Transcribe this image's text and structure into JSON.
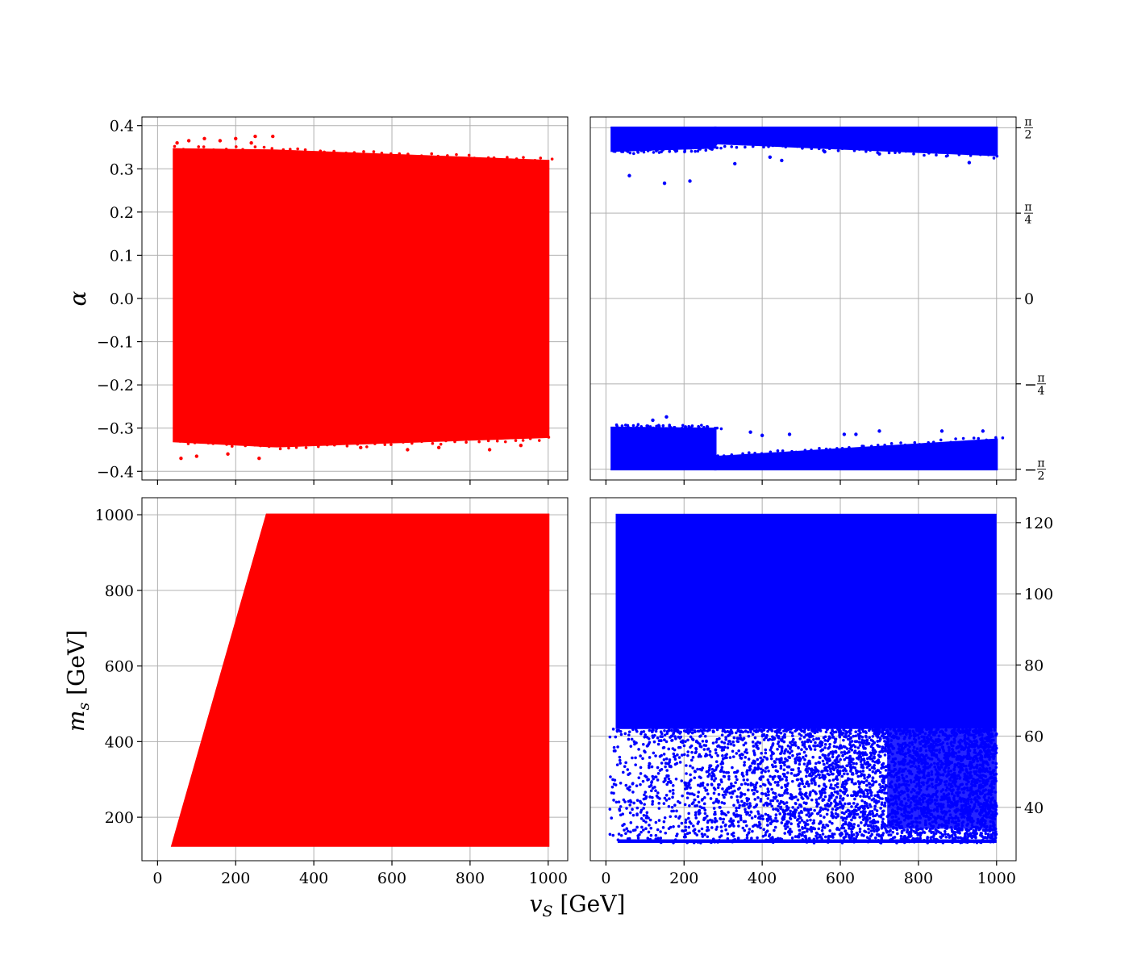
{
  "figure": {
    "xlabel_shared": "v_S [GeV]",
    "xlabel_main": "v",
    "xlabel_sub": "S",
    "xlabel_unit": " [GeV]"
  },
  "chart_data": [
    {
      "type": "scatter",
      "panel": "top-left",
      "color": "#ff0000",
      "ylabel": "α",
      "xlim": [
        -40,
        1050
      ],
      "ylim": [
        -0.42,
        0.42
      ],
      "xticks": [
        0,
        200,
        400,
        600,
        800,
        1000
      ],
      "xtick_labels_shown": false,
      "yticks": [
        -0.4,
        -0.3,
        -0.2,
        -0.1,
        0.0,
        0.1,
        0.2,
        0.3,
        0.4
      ],
      "ytick_labels": [
        "−0.4",
        "−0.3",
        "−0.2",
        "−0.1",
        "0.0",
        "0.1",
        "0.2",
        "0.3",
        "0.4"
      ],
      "ytick_side": "left",
      "grid": true,
      "regions": [
        {
          "shape": "band",
          "x": [
            42,
            1000
          ],
          "y_upper_at_x": [
            [
              42,
              0.345
            ],
            [
              300,
              0.342
            ],
            [
              1000,
              0.318
            ]
          ],
          "y_lower_at_x": [
            [
              42,
              -0.33
            ],
            [
              300,
              -0.342
            ],
            [
              1000,
              -0.32
            ]
          ]
        }
      ],
      "series": [
        {
          "x": [
            50,
            80,
            120,
            160,
            200,
            240,
            250,
            295,
            60,
            100,
            180,
            260,
            520,
            640,
            720,
            850,
            930
          ],
          "y": [
            0.36,
            0.365,
            0.37,
            0.365,
            0.37,
            0.36,
            0.375,
            0.375,
            -0.37,
            -0.365,
            -0.36,
            -0.37,
            -0.345,
            -0.35,
            -0.345,
            -0.35,
            -0.34
          ]
        }
      ]
    },
    {
      "type": "scatter",
      "panel": "top-right",
      "color": "#0000ff",
      "xlim": [
        -40,
        1050
      ],
      "ylim": [
        -1.67,
        1.67
      ],
      "xticks": [
        0,
        200,
        400,
        600,
        800,
        1000
      ],
      "xtick_labels_shown": false,
      "yticks": [
        -1.5708,
        -0.7854,
        0.0,
        0.7854,
        1.5708
      ],
      "ytick_labels": [
        {
          "sign": "−",
          "num": "π",
          "den": "2"
        },
        {
          "sign": "−",
          "num": "π",
          "den": "4"
        },
        {
          "sign": "",
          "num": "0",
          "den": ""
        },
        {
          "sign": "",
          "num": "π",
          "den": "4"
        },
        {
          "sign": "",
          "num": "π",
          "den": "2"
        }
      ],
      "ytick_side": "right",
      "grid": true,
      "regions": [
        {
          "shape": "band",
          "x": [
            15,
            280
          ],
          "y_upper": 1.571,
          "y_lower_at_x": [
            [
              15,
              1.36
            ],
            [
              280,
              1.39
            ]
          ]
        },
        {
          "shape": "band",
          "x": [
            280,
            1000
          ],
          "y_upper": 1.571,
          "y_lower_at_x": [
            [
              280,
              1.43
            ],
            [
              1000,
              1.32
            ]
          ]
        },
        {
          "shape": "band",
          "x": [
            15,
            280
          ],
          "y_lower": -1.571,
          "y_upper_at_x": [
            [
              15,
              -1.19
            ],
            [
              280,
              -1.2
            ]
          ]
        },
        {
          "shape": "band",
          "x": [
            280,
            1000
          ],
          "y_lower": -1.571,
          "y_upper_at_x": [
            [
              280,
              -1.46
            ],
            [
              1000,
              -1.3
            ]
          ]
        }
      ],
      "series": [
        {
          "x": [
            60,
            150,
            215,
            330,
            420,
            450,
            560,
            700,
            930,
            120,
            155,
            250,
            370,
            400,
            470,
            610,
            640,
            700,
            860,
            965
          ],
          "y": [
            1.13,
            1.06,
            1.08,
            1.24,
            1.3,
            1.27,
            1.35,
            1.33,
            1.25,
            -1.12,
            -1.09,
            -1.21,
            -1.23,
            -1.26,
            -1.25,
            -1.25,
            -1.25,
            -1.22,
            -1.22,
            -1.22
          ]
        }
      ]
    },
    {
      "type": "scatter",
      "panel": "bottom-left",
      "color": "#ff0000",
      "ylabel": "m_s [GeV]",
      "ylabel_main": "m",
      "ylabel_sub": "s",
      "ylabel_unit": " [GeV]",
      "xlim": [
        -40,
        1050
      ],
      "ylim": [
        85,
        1045
      ],
      "xticks": [
        0,
        200,
        400,
        600,
        800,
        1000
      ],
      "xtick_labels": [
        "0",
        "200",
        "400",
        "600",
        "800",
        "1000"
      ],
      "yticks": [
        200,
        400,
        600,
        800,
        1000
      ],
      "ytick_labels": [
        "200",
        "400",
        "600",
        "800",
        "1000"
      ],
      "ytick_side": "left",
      "grid": true,
      "regions": [
        {
          "shape": "polygon",
          "points": [
            [
              38,
              125
            ],
            [
              1000,
              125
            ],
            [
              1000,
              1000
            ],
            [
              280,
              1000
            ]
          ]
        }
      ],
      "series": []
    },
    {
      "type": "scatter",
      "panel": "bottom-right",
      "color": "#0000ff",
      "xlim": [
        -40,
        1050
      ],
      "ylim": [
        25,
        127
      ],
      "xticks": [
        0,
        200,
        400,
        600,
        800,
        1000
      ],
      "xtick_labels": [
        "0",
        "200",
        "400",
        "600",
        "800",
        "1000"
      ],
      "yticks": [
        40,
        60,
        80,
        100,
        120
      ],
      "ytick_labels": [
        "40",
        "60",
        "80",
        "100",
        "120"
      ],
      "ytick_side": "right",
      "grid": true,
      "regions": [
        {
          "shape": "rect",
          "x": [
            25,
            1000
          ],
          "y": [
            62,
            122.5
          ]
        },
        {
          "shape": "scatter-fill",
          "x": [
            10,
            1000
          ],
          "y": [
            30,
            62
          ],
          "density_increases_with_x": true
        }
      ],
      "series": []
    }
  ]
}
